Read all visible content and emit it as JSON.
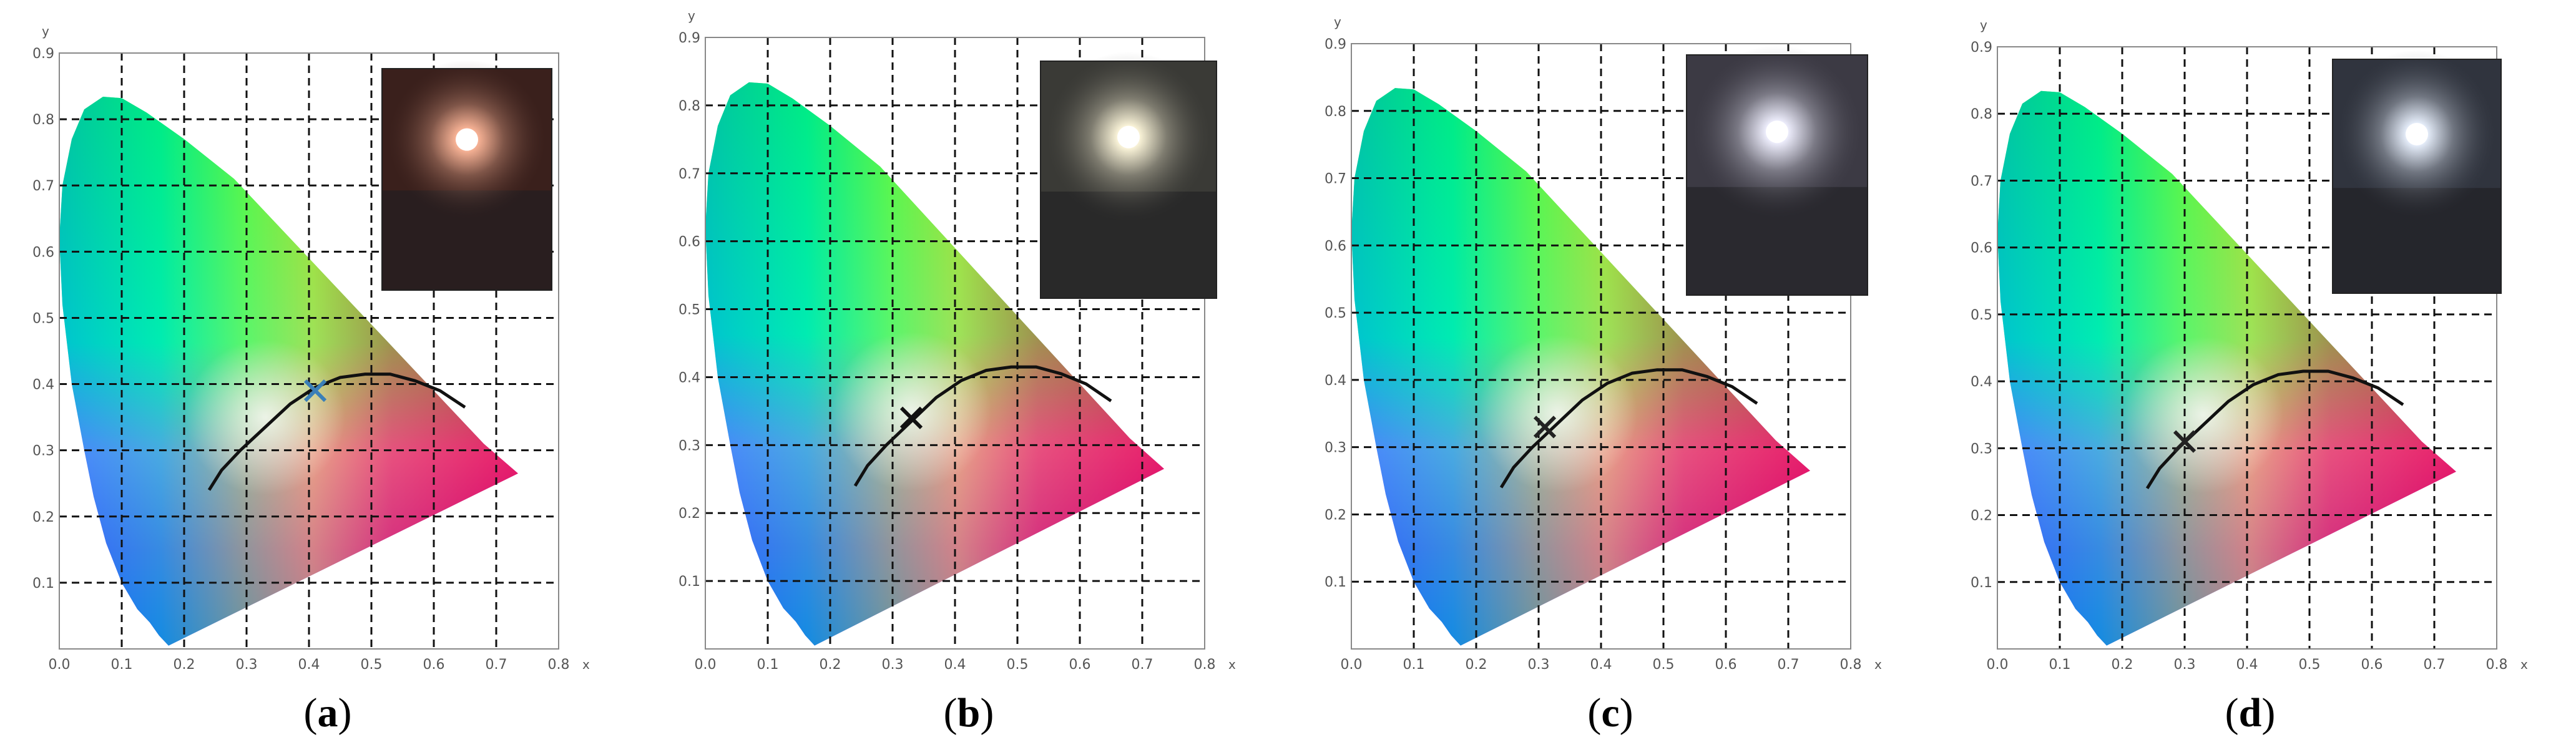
{
  "chart_data": [
    {
      "type": "scatter",
      "panel_label": "a",
      "xlabel": "x",
      "ylabel": "y",
      "xlim": [
        0,
        0.8
      ],
      "ylim": [
        0,
        0.9
      ],
      "xticks": [
        "0.0",
        "0.1",
        "0.2",
        "0.3",
        "0.4",
        "0.5",
        "0.6",
        "0.7",
        "0.8"
      ],
      "yticks": [
        "0.1",
        "0.2",
        "0.3",
        "0.4",
        "0.5",
        "0.6",
        "0.7",
        "0.8",
        "0.9"
      ],
      "grid": true,
      "chromaticity_point": {
        "x": 0.41,
        "y": 0.39
      },
      "marker_color": "#3a7fb8",
      "photo": {
        "glow": "#ffb89a",
        "tint": "#3a201c"
      }
    },
    {
      "type": "scatter",
      "panel_label": "b",
      "xlabel": "x",
      "ylabel": "y",
      "xlim": [
        0,
        0.8
      ],
      "ylim": [
        0,
        0.9
      ],
      "xticks": [
        "0.0",
        "0.1",
        "0.2",
        "0.3",
        "0.4",
        "0.5",
        "0.6",
        "0.7",
        "0.8"
      ],
      "yticks": [
        "0.1",
        "0.2",
        "0.3",
        "0.4",
        "0.5",
        "0.6",
        "0.7",
        "0.8",
        "0.9"
      ],
      "grid": true,
      "chromaticity_point": {
        "x": 0.33,
        "y": 0.34
      },
      "marker_color": "#111111",
      "photo": {
        "glow": "#fff8dc",
        "tint": "#3a3a36"
      }
    },
    {
      "type": "scatter",
      "panel_label": "c",
      "xlabel": "x",
      "ylabel": "y",
      "xlim": [
        0,
        0.8
      ],
      "ylim": [
        0,
        0.9
      ],
      "xticks": [
        "0.0",
        "0.1",
        "0.2",
        "0.3",
        "0.4",
        "0.5",
        "0.6",
        "0.7",
        "0.8"
      ],
      "yticks": [
        "0.1",
        "0.2",
        "0.3",
        "0.4",
        "0.5",
        "0.6",
        "0.7",
        "0.8",
        "0.9"
      ],
      "grid": true,
      "chromaticity_point": {
        "x": 0.31,
        "y": 0.33
      },
      "marker_color": "#222222",
      "photo": {
        "glow": "#f0f0ff",
        "tint": "#3c3a44"
      }
    },
    {
      "type": "scatter",
      "panel_label": "d",
      "xlabel": "x",
      "ylabel": "y",
      "xlim": [
        0,
        0.8
      ],
      "ylim": [
        0,
        0.9
      ],
      "xticks": [
        "0.0",
        "0.1",
        "0.2",
        "0.3",
        "0.4",
        "0.5",
        "0.6",
        "0.7",
        "0.8"
      ],
      "yticks": [
        "0.1",
        "0.2",
        "0.3",
        "0.4",
        "0.5",
        "0.6",
        "0.7",
        "0.8",
        "0.9"
      ],
      "grid": true,
      "chromaticity_point": {
        "x": 0.3,
        "y": 0.31
      },
      "marker_color": "#222222",
      "photo": {
        "glow": "#eaf2ff",
        "tint": "#30343e"
      }
    }
  ],
  "gamut_locus": [
    [
      0.175,
      0.005
    ],
    [
      0.17,
      0.01
    ],
    [
      0.16,
      0.02
    ],
    [
      0.145,
      0.04
    ],
    [
      0.125,
      0.06
    ],
    [
      0.1,
      0.1
    ],
    [
      0.075,
      0.16
    ],
    [
      0.055,
      0.23
    ],
    [
      0.04,
      0.3
    ],
    [
      0.02,
      0.4
    ],
    [
      0.005,
      0.52
    ],
    [
      0.0,
      0.62
    ],
    [
      0.005,
      0.7
    ],
    [
      0.02,
      0.77
    ],
    [
      0.04,
      0.815
    ],
    [
      0.07,
      0.834
    ],
    [
      0.1,
      0.832
    ],
    [
      0.14,
      0.81
    ],
    [
      0.2,
      0.77
    ],
    [
      0.28,
      0.71
    ],
    [
      0.36,
      0.63
    ],
    [
      0.44,
      0.55
    ],
    [
      0.52,
      0.47
    ],
    [
      0.6,
      0.39
    ],
    [
      0.68,
      0.31
    ],
    [
      0.735,
      0.265
    ]
  ],
  "planckian_locus": [
    [
      0.24,
      0.24
    ],
    [
      0.26,
      0.27
    ],
    [
      0.29,
      0.3
    ],
    [
      0.33,
      0.335
    ],
    [
      0.37,
      0.37
    ],
    [
      0.41,
      0.395
    ],
    [
      0.45,
      0.41
    ],
    [
      0.49,
      0.415
    ],
    [
      0.53,
      0.415
    ],
    [
      0.57,
      0.405
    ],
    [
      0.61,
      0.39
    ],
    [
      0.65,
      0.365
    ]
  ]
}
